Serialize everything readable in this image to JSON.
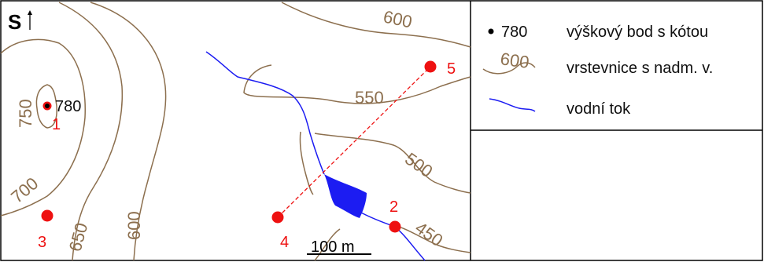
{
  "map": {
    "north_label": "S",
    "elevation_point": {
      "value": "780"
    },
    "contour_labels": [
      "600",
      "550",
      "500",
      "450",
      "750",
      "700",
      "650",
      "600"
    ],
    "points": [
      {
        "id": "1"
      },
      {
        "id": "2"
      },
      {
        "id": "3"
      },
      {
        "id": "4"
      },
      {
        "id": "5"
      }
    ],
    "scale_bar": {
      "label": "100 m"
    },
    "colors": {
      "contour": "#8c6f4e",
      "river": "#1c1cf2",
      "points": "#ee1111",
      "profile_line": "#ee1111"
    }
  },
  "legend": {
    "elevation_point_value": "780",
    "elevation_point_label": "výškový bod s kótou",
    "contour_value": "600",
    "contour_label": "vrstevnice s nadm. v.",
    "stream_label": "vodní tok"
  }
}
